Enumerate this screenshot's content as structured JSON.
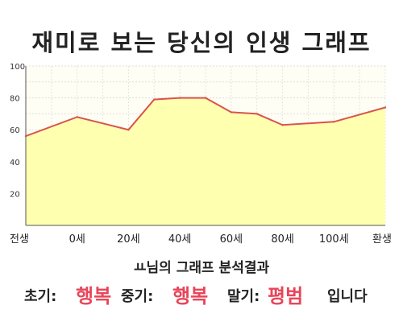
{
  "chart_data": {
    "type": "area",
    "title": "재미로 보는 당신의 인생 그래프",
    "x_labels": [
      "전생",
      "0세",
      "20세",
      "40세",
      "60세",
      "80세",
      "100세",
      "환생"
    ],
    "x": [
      -20,
      0,
      20,
      30,
      40,
      50,
      60,
      70,
      80,
      100,
      120
    ],
    "values": [
      56,
      68,
      60,
      79,
      80,
      80,
      71,
      70,
      63,
      65,
      74
    ],
    "ylim": [
      0,
      100
    ],
    "yticks": [
      20,
      40,
      60,
      80,
      100
    ],
    "grid": true,
    "line_color": "#d9534f",
    "fill_color": "#ffffb0"
  },
  "summary": {
    "text": "ㅛ님의 그래프 분석결과"
  },
  "results": {
    "early_label": "초기:",
    "early_value": "행복",
    "mid_label": "중기:",
    "mid_value": "행복",
    "late_label": "말기:",
    "late_value": "평범",
    "suffix": "입니다",
    "value_color": "#e8455a"
  }
}
